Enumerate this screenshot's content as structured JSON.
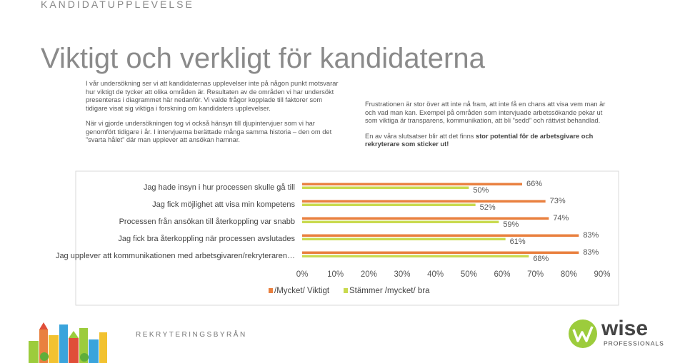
{
  "header": {
    "section": "KANDIDATUPPLEVELSE",
    "title": "Viktigt och verkligt för kandidaterna"
  },
  "left_column": [
    {
      "text": "I vår undersökning ser vi att kandidaternas upplevelser inte på någon punkt motsvarar hur viktigt de tycker att olika områden är. Resultaten av de områden vi har undersökt presenteras i diagrammet här nedanför. Vi valde frågor kopplade till faktorer som tidigare visat sig viktiga i forskning om kandidaters upplevelser."
    },
    {
      "text": "När vi gjorde undersökningen tog vi också hänsyn till djupintervjuer som vi har genomfört tidigare i år. I intervjuerna berättade många samma historia – den om det ”svarta hålet” där man upplever att ansökan hamnar."
    }
  ],
  "right_column": [
    {
      "text": "Frustrationen är stor över att inte nå fram, att inte få en chans att visa vem man är och vad man kan. Exempel på områden som intervjuade arbetssökande pekar ut som viktiga är transparens, kommunikation, att bli ”sedd” och rättvist behandlad."
    },
    {
      "text": "En av våra slutsatser blir att det finns ",
      "bold": "stor potential för de arbetsgivare och rekryterare som sticker ut!"
    }
  ],
  "chart_data": {
    "type": "hbar",
    "categories": [
      "Jag hade insyn i hur processen skulle gå till",
      "Jag fick möjlighet att visa min kompetens",
      "Processen från ansökan till återkoppling var snabb",
      "Jag fick bra återkoppling när processen avslutades",
      "Jag upplever att kommunikationen med arbetsgivaren/rekryteraren…"
    ],
    "series": [
      {
        "name": "/Mycket/ Viktigt",
        "color": "#e9803f",
        "values": [
          66,
          73,
          74,
          83,
          83
        ],
        "value_labels": [
          "66%",
          "73%",
          "74%",
          "83%",
          "83%"
        ]
      },
      {
        "name": "Stämmer /mycket/ bra",
        "color": "#c9da4f",
        "values": [
          50,
          52,
          59,
          61,
          68
        ],
        "value_labels": [
          "50%",
          "52%",
          "59%",
          "61%",
          "68%"
        ]
      }
    ],
    "xlim": [
      0,
      90
    ],
    "xticks": [
      {
        "value": 0,
        "label": "0%"
      },
      {
        "value": 10,
        "label": "10%"
      },
      {
        "value": 20,
        "label": "20%"
      },
      {
        "value": 30,
        "label": "30%"
      },
      {
        "value": 40,
        "label": "40%"
      },
      {
        "value": 50,
        "label": "50%"
      },
      {
        "value": 60,
        "label": "60%"
      },
      {
        "value": 70,
        "label": "70%"
      },
      {
        "value": 80,
        "label": "80%"
      },
      {
        "value": 90,
        "label": "90%"
      }
    ],
    "legend": "bottom"
  },
  "footer": {
    "tagline": "REKRYTERINGSBYRÅN",
    "logo": "wise",
    "logo_sub": "PROFESSIONALS"
  }
}
